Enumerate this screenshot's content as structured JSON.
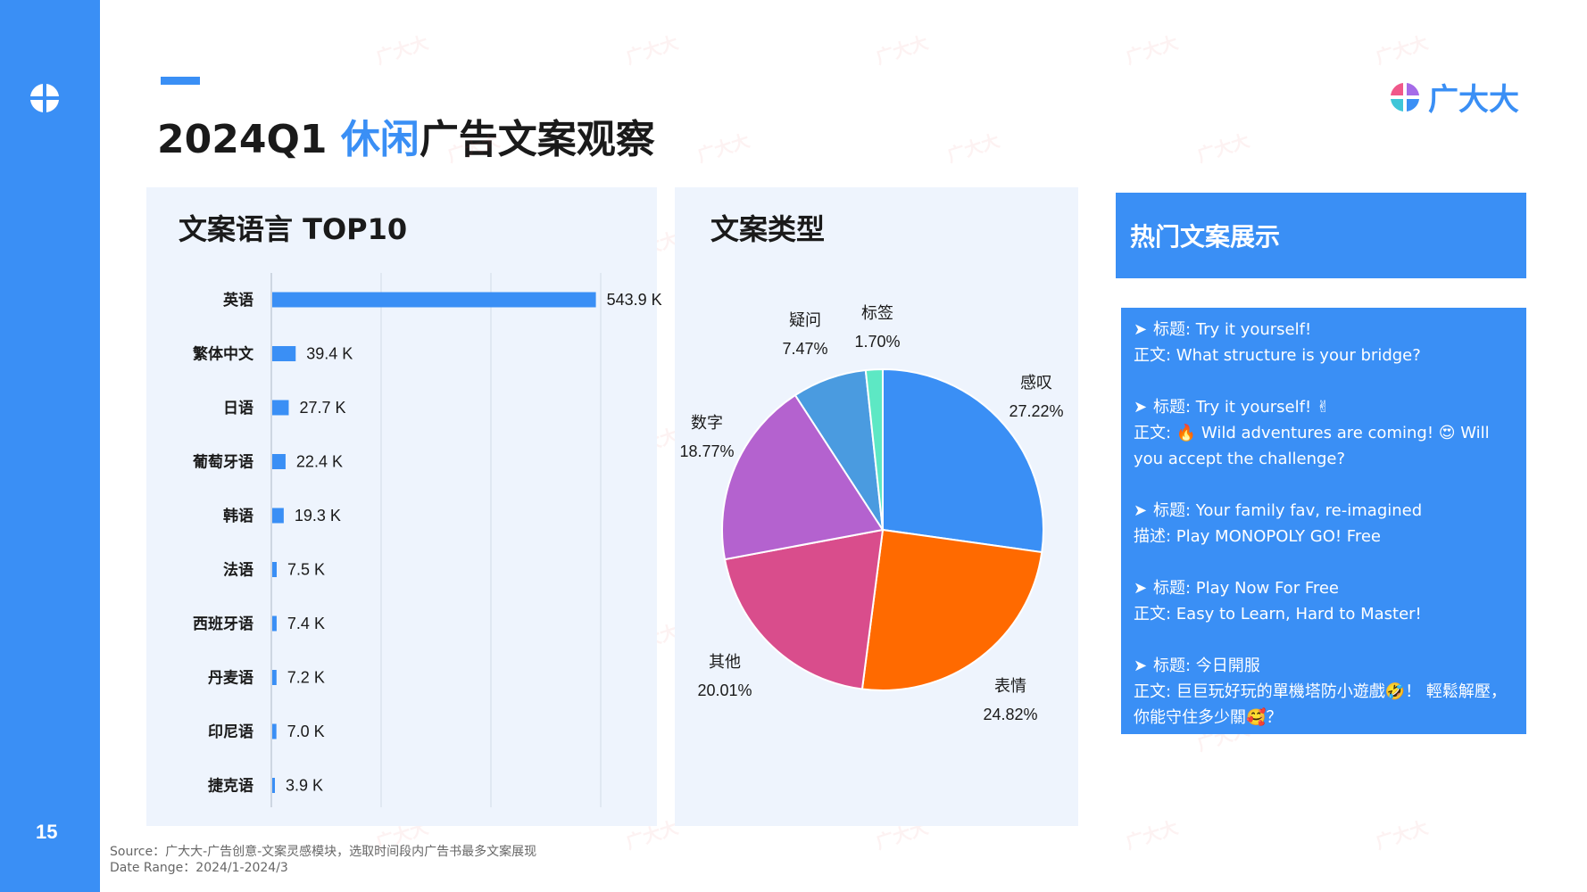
{
  "page": {
    "number": "15",
    "title_prefix": "2024Q1 ",
    "title_highlight": "休闲",
    "title_suffix": "广告文案观察"
  },
  "brand": {
    "name": "广大大"
  },
  "watermark_text": "广大大",
  "bar_panel": {
    "title": "文案语言 TOP10"
  },
  "pie_panel": {
    "title": "文案类型"
  },
  "copy_panel": {
    "title": "热门文案展示",
    "items": [
      {
        "line1": "标题: Try it yourself!",
        "line2": "正文: What structure is your bridge?"
      },
      {
        "line1": "标题: Try it yourself! ✌",
        "line2": "正文: 🔥 Wild adventures are coming! 😍 Will you accept the challenge?"
      },
      {
        "line1": "标题: Your family fav, re-imagined",
        "line2": "描述: Play MONOPOLY GO! Free"
      },
      {
        "line1": "标题: Play Now For Free",
        "line2": "正文: Easy to Learn, Hard to Master!"
      },
      {
        "line1": "标题: 今日開服",
        "line2": "正文: 巨巨玩好玩的單機塔防小遊戲🤣！ 輕鬆解壓，你能守住多少關🥰？"
      }
    ]
  },
  "source": {
    "line1": "Source：广大大-广告创意-文案灵感模块，选取时间段内广告书最多文案展现",
    "line2": "Date Range：2024/1-2024/3"
  },
  "colors": {
    "accent": "#3a8ff5",
    "panel_bg": "#eef4fd"
  },
  "icons": {
    "bullet": "➤"
  },
  "chart_data": [
    {
      "type": "bar",
      "orientation": "horizontal",
      "title": "文案语言 TOP10",
      "categories": [
        "英语",
        "繁体中文",
        "日语",
        "葡萄牙语",
        "韩语",
        "法语",
        "西班牙语",
        "丹麦语",
        "印尼语",
        "捷克语"
      ],
      "values": [
        543.9,
        39.4,
        27.7,
        22.4,
        19.3,
        7.5,
        7.4,
        7.2,
        7.0,
        3.9
      ],
      "value_labels": [
        "543.9 K",
        "39.4 K",
        "27.7 K",
        "22.4 K",
        "19.3 K",
        "7.5 K",
        "7.4 K",
        "7.2 K",
        "7.0 K",
        "3.9 K"
      ],
      "unit": "K",
      "xlim": [
        0,
        600
      ],
      "grid": true,
      "bar_color": "#3a8ff5"
    },
    {
      "type": "pie",
      "title": "文案类型",
      "slices": [
        {
          "label": "感叹",
          "value": 27.22,
          "display": "27.22%",
          "color": "#3a8ff5"
        },
        {
          "label": "表情",
          "value": 24.82,
          "display": "24.82%",
          "color": "#ff6a00"
        },
        {
          "label": "其他",
          "value": 20.01,
          "display": "20.01%",
          "color": "#d94d8c"
        },
        {
          "label": "数字",
          "value": 18.77,
          "display": "18.77%",
          "color": "#b462cf"
        },
        {
          "label": "疑问",
          "value": 7.47,
          "display": "7.47%",
          "color": "#4a9be0"
        },
        {
          "label": "标签",
          "value": 1.7,
          "display": "1.70%",
          "color": "#5de8c4"
        }
      ],
      "start_angle_deg": 0,
      "direction": "clockwise"
    }
  ]
}
